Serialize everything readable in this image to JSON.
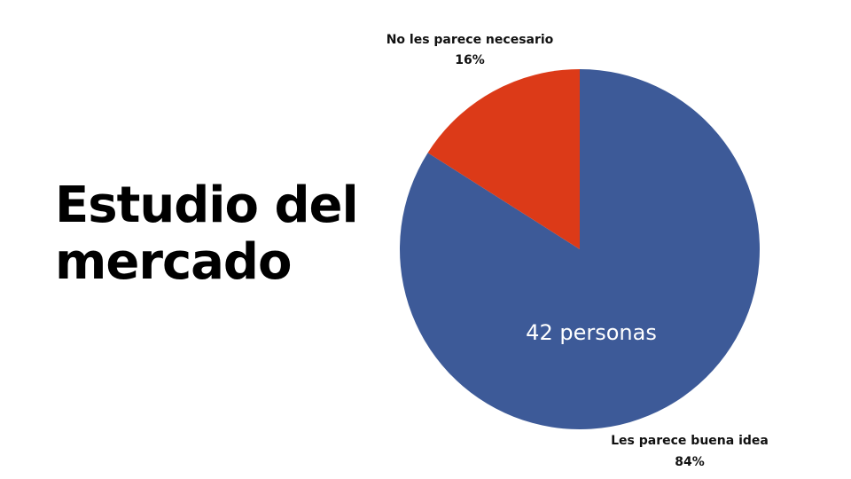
{
  "slide": {
    "title_line1": "Estudio del",
    "title_line2": "mercado"
  },
  "chart_data": {
    "type": "pie",
    "categories": [
      "Les parece buena idea",
      "No les parece necesario"
    ],
    "values": [
      84,
      16
    ],
    "value_labels": [
      "84%",
      "16%"
    ],
    "colors": [
      "#3d5a98",
      "#dc3a18"
    ],
    "annotation": "42 personas",
    "legend": "none"
  }
}
